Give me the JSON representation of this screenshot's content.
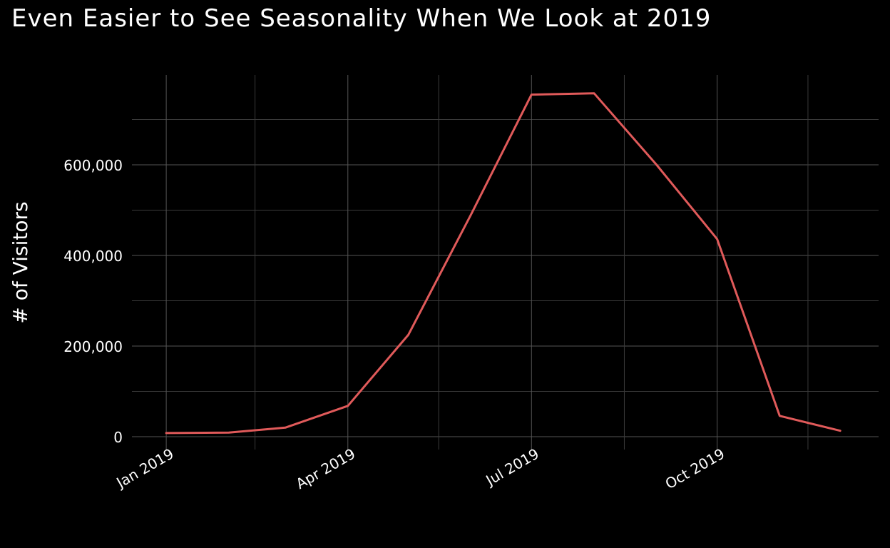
{
  "chart_data": {
    "type": "line",
    "title": "Even Easier to See Seasonality When We Look at 2019",
    "xlabel": "",
    "ylabel": "# of Visitors",
    "ylim": [
      0,
      760000
    ],
    "xlim": [
      "2018-12-15",
      "2019-12-20"
    ],
    "x_ticks": [
      "Jan 2019",
      "Apr 2019",
      "Jul 2019",
      "Oct 2019"
    ],
    "x_tick_dates": [
      "2019-01-01",
      "2019-04-01",
      "2019-07-01",
      "2019-10-01"
    ],
    "y_ticks": [
      "0",
      "200,000",
      "400,000",
      "600,000"
    ],
    "y_tick_values": [
      0,
      200000,
      400000,
      600000
    ],
    "grid": true,
    "line_color": "#E05A5A",
    "series": [
      {
        "x": [
          "2019-01-01",
          "2019-02-01",
          "2019-03-01",
          "2019-04-01",
          "2019-05-01",
          "2019-06-01",
          "2019-07-01",
          "2019-08-01",
          "2019-09-01",
          "2019-10-01",
          "2019-11-01",
          "2019-12-01"
        ],
        "values": [
          8000,
          9000,
          20000,
          68000,
          225000,
          490000,
          755000,
          758000,
          600000,
          436000,
          46000,
          13000
        ]
      }
    ]
  }
}
